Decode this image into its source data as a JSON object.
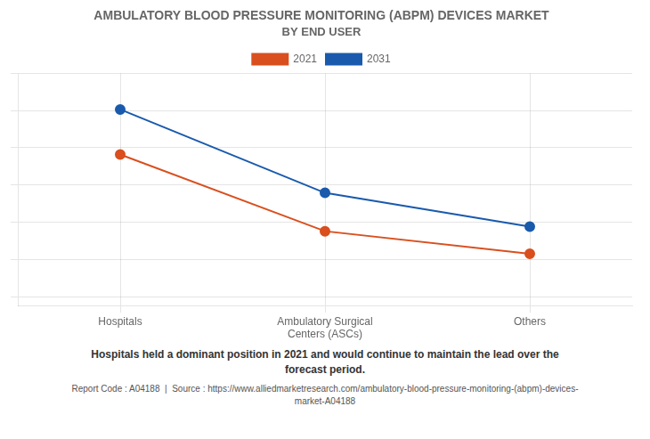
{
  "chart_data": {
    "type": "line",
    "title": "AMBULATORY BLOOD PRESSURE MONITORING (ABPM) DEVICES MARKET",
    "subtitle": "BY END USER",
    "categories": [
      "Hospitals",
      "Ambulatory Surgical\nCenters (ASCs)",
      "Others"
    ],
    "series": [
      {
        "name": "2021",
        "color": "#d94f1e",
        "values": [
          0.72,
          0.38,
          0.28
        ]
      },
      {
        "name": "2031",
        "color": "#1a5aad",
        "values": [
          0.92,
          0.55,
          0.4
        ]
      }
    ],
    "ylim": [
      0.05,
      1.08
    ],
    "yticks": [
      0.09,
      0.255,
      0.42,
      0.585,
      0.75,
      0.915,
      1.08
    ],
    "grid": true,
    "tick_labels": "x",
    "legend": "top",
    "marker": "circle",
    "annotations": [
      "Hospitals held a dominant position in 2021 and would continue to maintain the lead over the\nforecast period.",
      "Report Code : A04188  |  Source : https://www.alliedmarketresearch.com/ambulatory-blood-pressure-monitoring-(abpm)-devices-\nmarket-A04188"
    ]
  }
}
